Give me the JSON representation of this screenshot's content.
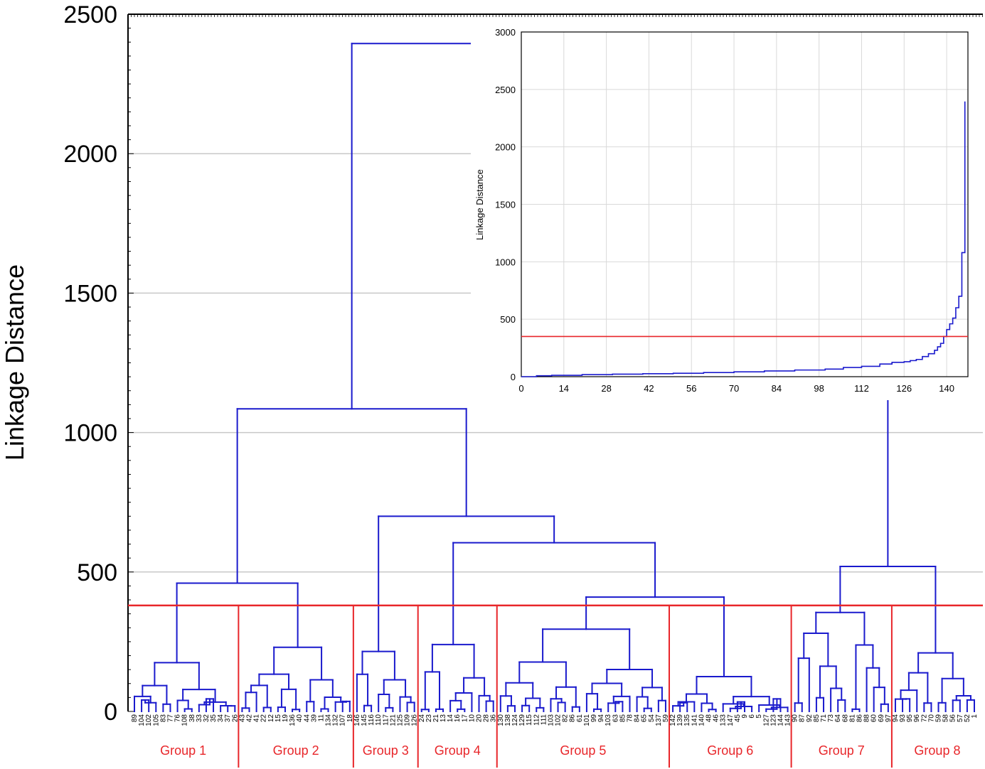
{
  "chart_data": [
    {
      "type": "dendrogram",
      "ylabel": "Linkage Distance",
      "ylim": [
        0,
        2500
      ],
      "yticks": [
        0,
        500,
        1000,
        1500,
        2000,
        2500
      ],
      "grid": true,
      "cut_threshold": 380,
      "colors": {
        "tree": "#1a1acd",
        "cut": "#e8262a",
        "grid": "#c8c8c8"
      },
      "leaf_labels": [
        "89",
        "104",
        "102",
        "105",
        "83",
        "77",
        "76",
        "108",
        "38",
        "33",
        "32",
        "35",
        "34",
        "37",
        "26",
        "43",
        "42",
        "41",
        "22",
        "12",
        "15",
        "19",
        "136",
        "40",
        "44",
        "39",
        "11",
        "134",
        "132",
        "107",
        "18",
        "146",
        "145",
        "116",
        "110",
        "117",
        "121",
        "125",
        "109",
        "126",
        "24",
        "23",
        "21",
        "13",
        "14",
        "16",
        "17",
        "10",
        "20",
        "28",
        "36",
        "130",
        "138",
        "124",
        "129",
        "115",
        "112",
        "111",
        "103",
        "102",
        "82",
        "86",
        "61",
        "101",
        "99",
        "94",
        "103",
        "63",
        "85",
        "78",
        "84",
        "65",
        "54",
        "137",
        "59",
        "142",
        "139",
        "135",
        "141",
        "140",
        "48",
        "46",
        "133",
        "147",
        "45",
        "9",
        "6",
        "5",
        "127",
        "123",
        "144",
        "143",
        "90",
        "87",
        "92",
        "85",
        "71",
        "73",
        "64",
        "68",
        "81",
        "86",
        "88",
        "60",
        "69",
        "97",
        "94",
        "93",
        "95",
        "96",
        "72",
        "70",
        "59",
        "58",
        "56",
        "57",
        "52",
        "1"
      ],
      "groups": [
        "Group 1",
        "Group 2",
        "Group 3",
        "Group 4",
        "Group 5",
        "Group 6",
        "Group 7",
        "Group 8"
      ],
      "major_merges": [
        {
          "name": "Group 1",
          "height": 175
        },
        {
          "name": "Group 2",
          "height": 230
        },
        {
          "name": "Group 1 + Group 2",
          "height": 460
        },
        {
          "name": "Group 3",
          "height": 215
        },
        {
          "name": "Group 4",
          "height": 240
        },
        {
          "name": "Group 5",
          "height": 295
        },
        {
          "name": "Group 6",
          "height": 125
        },
        {
          "name": "Group 5 + Group 6",
          "height": 410
        },
        {
          "name": "Group 4 + (Group 5 + Group 6)",
          "height": 605
        },
        {
          "name": "Group 3 + (Group 4 + Group 5 + Group 6)",
          "height": 700
        },
        {
          "name": "Groups 1-6",
          "height": 1085
        },
        {
          "name": "Group 7",
          "height": 355
        },
        {
          "name": "Group 8",
          "height": 210
        },
        {
          "name": "Group 7 + Group 8",
          "height": 520
        },
        {
          "name": "All",
          "height": 2395
        }
      ]
    },
    {
      "type": "line",
      "ylabel": "Linkage Distance",
      "xlabel": "",
      "xlim": [
        0,
        147
      ],
      "ylim": [
        0,
        3000
      ],
      "xticks": [
        0,
        14,
        28,
        42,
        56,
        70,
        84,
        98,
        112,
        126,
        140
      ],
      "yticks": [
        0,
        500,
        1000,
        1500,
        2000,
        2500,
        3000
      ],
      "grid": true,
      "threshold": 350,
      "series": [
        {
          "style": "step",
          "x": [
            0,
            5,
            10,
            20,
            30,
            40,
            50,
            60,
            70,
            80,
            90,
            100,
            106,
            112,
            118,
            122,
            126,
            128,
            130,
            132,
            134,
            136,
            137,
            138,
            139,
            140,
            141,
            142,
            143,
            144,
            145,
            146
          ],
          "y": [
            0,
            8,
            12,
            18,
            22,
            26,
            30,
            36,
            42,
            50,
            58,
            66,
            80,
            90,
            110,
            125,
            130,
            140,
            150,
            175,
            200,
            230,
            260,
            290,
            350,
            410,
            460,
            510,
            600,
            700,
            1080,
            2395
          ]
        }
      ]
    }
  ]
}
